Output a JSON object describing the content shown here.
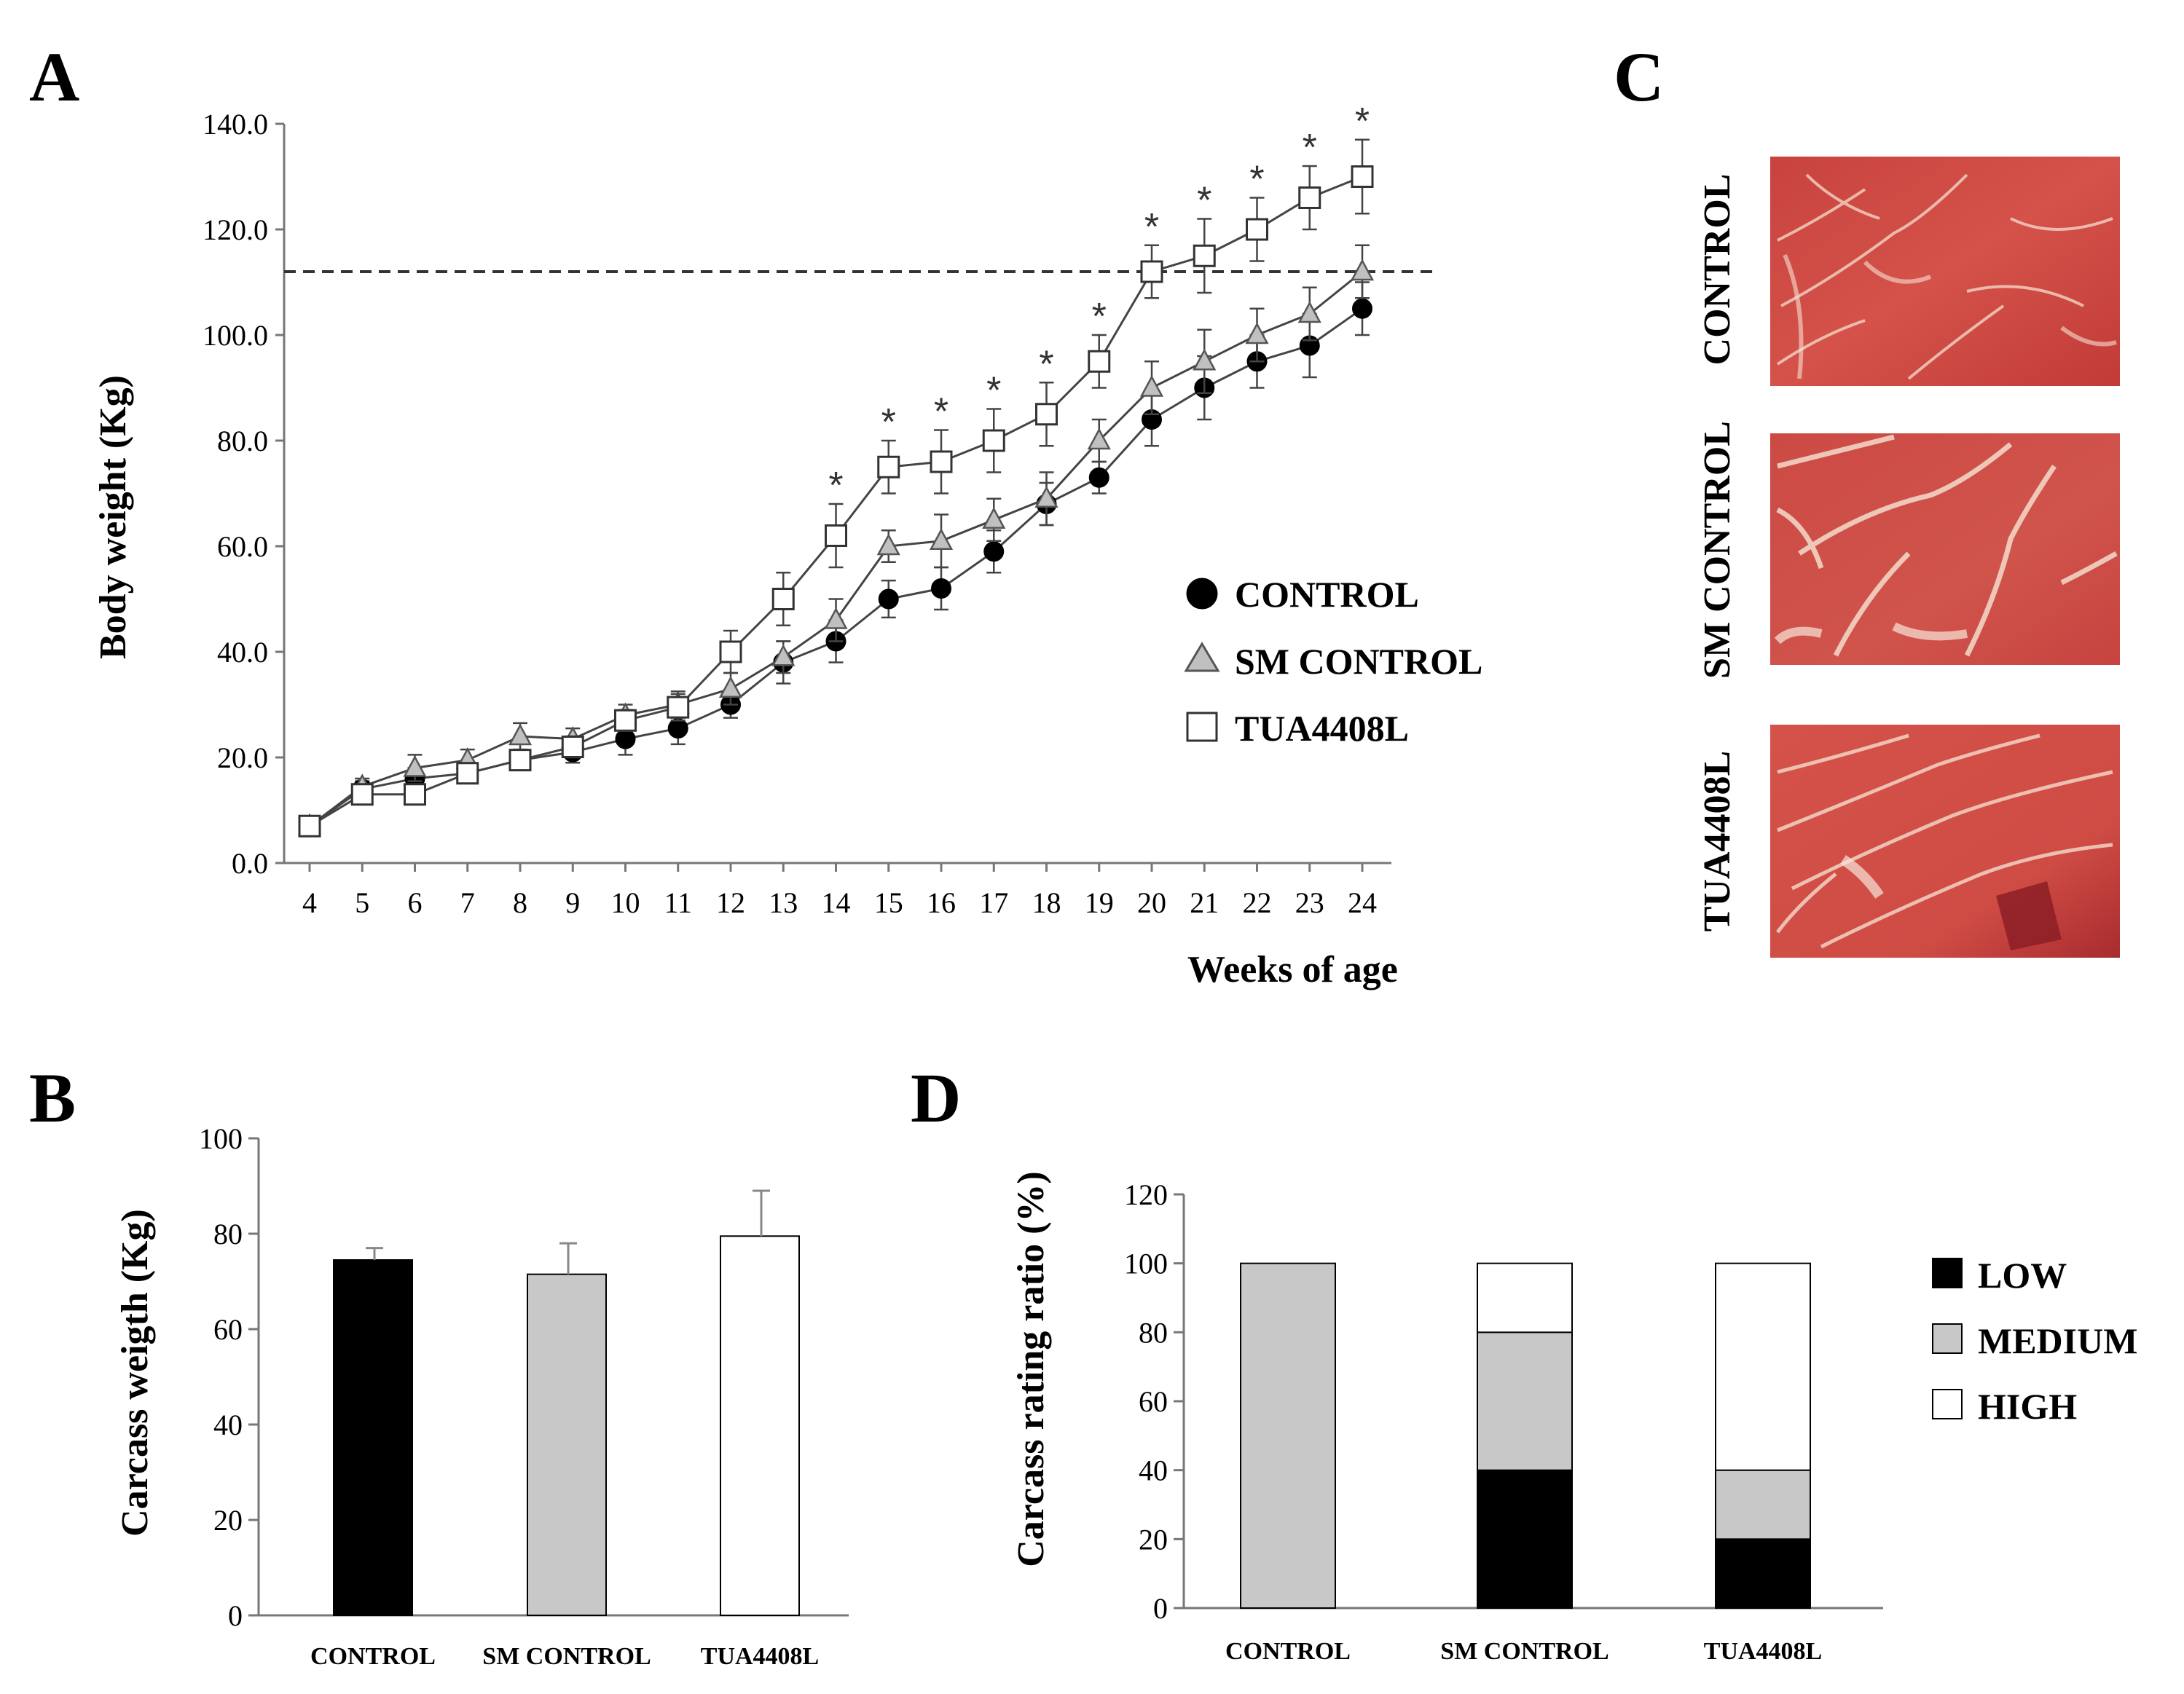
{
  "panels": {
    "A": "A",
    "B": "B",
    "C": "C",
    "D": "D"
  },
  "photo_labels": [
    "CONTROL",
    "SM CONTROL",
    "TUA4408L"
  ],
  "chart_data": [
    {
      "id": "A",
      "type": "line",
      "ylabel": "Body weight (Kg)",
      "xlabel": "Weeks of age",
      "ylim": [
        0,
        140
      ],
      "yticks": [
        "0.0",
        "20.0",
        "40.0",
        "60.0",
        "80.0",
        "100.0",
        "120.0",
        "140.0"
      ],
      "yticks_values": [
        0,
        20,
        40,
        60,
        80,
        100,
        120,
        140
      ],
      "x": [
        4,
        5,
        6,
        7,
        8,
        9,
        10,
        11,
        12,
        13,
        14,
        15,
        16,
        17,
        18,
        19,
        20,
        21,
        22,
        23,
        24
      ],
      "xtick_labels": [
        "4",
        "5",
        "6",
        "7",
        "8",
        "9",
        "10",
        "11",
        "12",
        "13",
        "14",
        "15",
        "16",
        "17",
        "18",
        "19",
        "20",
        "21",
        "22",
        "23",
        "24"
      ],
      "reference_line": 112,
      "significance_marker": "*",
      "significant_x": [
        14,
        15,
        16,
        17,
        18,
        19,
        20,
        21,
        22,
        23,
        24
      ],
      "series": [
        {
          "name": "CONTROL",
          "marker": "circle",
          "values": [
            7,
            14,
            16,
            17,
            19.5,
            21,
            23.5,
            25.5,
            30,
            38,
            42,
            50,
            52,
            59,
            68,
            73,
            84,
            90,
            95,
            98,
            105
          ],
          "errors": [
            1,
            1.5,
            2,
            1.5,
            1.5,
            2,
            3,
            3,
            2.5,
            4,
            4,
            3.5,
            4,
            4,
            4,
            3,
            5,
            6,
            5,
            6,
            5
          ]
        },
        {
          "name": "SM CONTROL",
          "marker": "triangle",
          "values": [
            7,
            14.5,
            18,
            19.5,
            24,
            23.5,
            28,
            30,
            33,
            39,
            46,
            60,
            61,
            65,
            69,
            80,
            90,
            95,
            100,
            104,
            112
          ],
          "errors": [
            1,
            1.5,
            2.5,
            2,
            2.5,
            2,
            2,
            2.5,
            3,
            3,
            4,
            3,
            5,
            4,
            5,
            4,
            5,
            6,
            5,
            5,
            5
          ]
        },
        {
          "name": "TUA4408L",
          "marker": "square",
          "values": [
            7,
            13,
            13,
            17,
            19.5,
            22,
            27,
            29.5,
            40,
            50,
            62,
            75,
            76,
            80,
            85,
            95,
            112,
            115,
            120,
            126,
            130
          ],
          "errors": [
            1,
            1,
            1.5,
            1.5,
            1.5,
            2,
            2,
            2.5,
            4,
            5,
            6,
            5,
            6,
            6,
            6,
            5,
            5,
            7,
            6,
            6,
            7
          ]
        }
      ]
    },
    {
      "id": "B",
      "type": "bar",
      "ylabel": "Carcass weigth (Kg)",
      "ylim": [
        0,
        100
      ],
      "yticks": [
        "0",
        "20",
        "40",
        "60",
        "80",
        "100"
      ],
      "yticks_values": [
        0,
        20,
        40,
        60,
        80,
        100
      ],
      "categories": [
        "CONTROL",
        "SM CONTROL",
        "TUA4408L"
      ],
      "values": [
        74.5,
        71.5,
        79.5
      ],
      "errors": [
        2.5,
        6.5,
        9.5
      ],
      "colors": [
        "#000000",
        "#c8c8c8",
        "#ffffff"
      ]
    },
    {
      "id": "D",
      "type": "bar",
      "stacked": true,
      "ylabel": "Carcass rating ratio (%)",
      "ylim": [
        0,
        120
      ],
      "yticks": [
        "0",
        "20",
        "40",
        "60",
        "80",
        "100",
        "120"
      ],
      "yticks_values": [
        0,
        20,
        40,
        60,
        80,
        100,
        120
      ],
      "categories": [
        "CONTROL",
        "SM CONTROL",
        "TUA4408L"
      ],
      "series": [
        {
          "name": "LOW",
          "color": "#000000",
          "values": [
            0,
            40,
            20
          ]
        },
        {
          "name": "MEDIUM",
          "color": "#c8c8c8",
          "values": [
            100,
            40,
            20
          ]
        },
        {
          "name": "HIGH",
          "color": "#ffffff",
          "values": [
            0,
            20,
            60
          ]
        }
      ]
    }
  ]
}
